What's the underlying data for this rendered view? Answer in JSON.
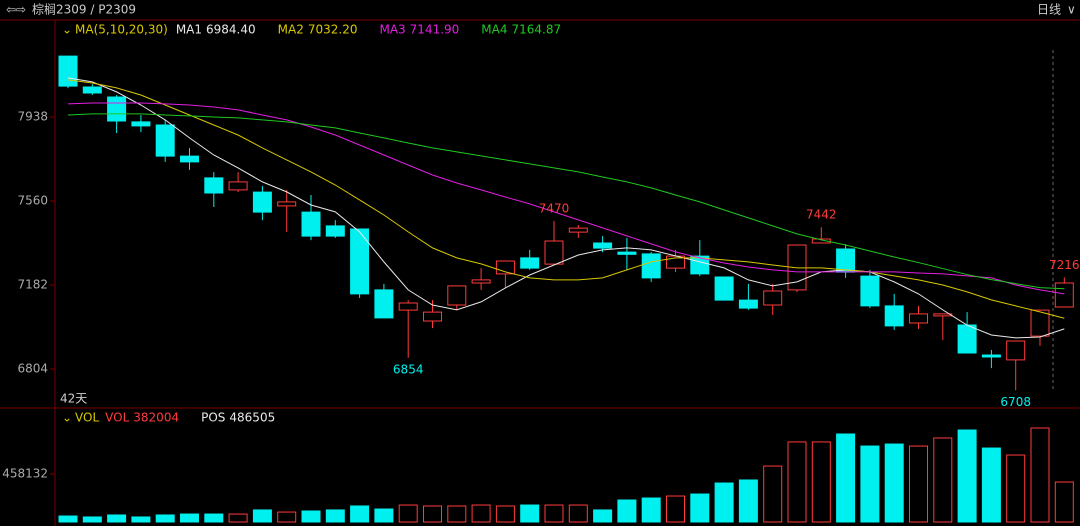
{
  "header": {
    "title": "棕榈2309 / P2309",
    "period": "日线"
  },
  "chart_data": [
    {
      "type": "candlestick",
      "span_label": "42天",
      "ma_title": "MA(5,10,20,30)",
      "up_color": "#ff3b3b",
      "down_color": "#00f0f0",
      "ylim": [
        6628.5,
        8374.5
      ],
      "yticks": [
        6804,
        7182,
        7560,
        7938
      ],
      "open": [
        8212,
        8073,
        8028,
        7916,
        7902,
        7762,
        7664,
        7610,
        7600,
        7538,
        7510,
        7448,
        7434,
        7160,
        7069,
        7020,
        7092,
        7191,
        7232,
        7304,
        7276,
        7420,
        7371,
        7330,
        7322,
        7258,
        7312,
        7218,
        7114,
        7092,
        7160,
        7371,
        7344,
        7222,
        7088,
        7011,
        7043,
        7002,
        6867,
        6845,
        6952,
        7083
      ],
      "high": [
        8212,
        8086,
        8037,
        7947,
        7924,
        7798,
        7690,
        7690,
        7628,
        7610,
        7587,
        7474,
        7434,
        7187,
        7114,
        7114,
        7178,
        7258,
        7290,
        7340,
        7470,
        7452,
        7402,
        7394,
        7330,
        7340,
        7384,
        7218,
        7187,
        7187,
        7362,
        7442,
        7366,
        7250,
        7142,
        7088,
        7052,
        7060,
        6890,
        6930,
        7069,
        7216
      ],
      "low": [
        8068,
        8037,
        7866,
        7870,
        7736,
        7700,
        7533,
        7600,
        7474,
        7420,
        7384,
        7394,
        7124,
        7034,
        6854,
        6988,
        7069,
        7160,
        7168,
        7250,
        7270,
        7394,
        7330,
        7250,
        7196,
        7240,
        7222,
        7114,
        7070,
        7047,
        7150,
        7370,
        7214,
        7078,
        6980,
        6984,
        6934,
        6876,
        6808,
        6708,
        6908,
        7083
      ],
      "close": [
        8077,
        8046,
        7920,
        7898,
        7762,
        7736,
        7596,
        7646,
        7510,
        7556,
        7402,
        7402,
        7142,
        7034,
        7101,
        7060,
        7178,
        7205,
        7290,
        7258,
        7380,
        7438,
        7348,
        7320,
        7214,
        7312,
        7232,
        7114,
        7078,
        7155,
        7362,
        7389,
        7240,
        7088,
        6998,
        7052,
        7052,
        6876,
        6858,
        6930,
        7069,
        7191
      ],
      "marked_extremes": [
        {
          "index": 14,
          "field": "low"
        },
        {
          "index": 20,
          "field": "high"
        },
        {
          "index": 31,
          "field": "high"
        },
        {
          "index": 39,
          "field": "low"
        },
        {
          "index": 41,
          "field": "high"
        }
      ],
      "series": [
        {
          "name": "MA1",
          "color": "#e8e8e8",
          "value_label": "6984.40",
          "values": [
            8114,
            8096,
            8051,
            7992,
            7925,
            7844,
            7767,
            7709,
            7646,
            7601,
            7542,
            7511,
            7421,
            7286,
            7160,
            7092,
            7070,
            7106,
            7169,
            7227,
            7272,
            7317,
            7340,
            7349,
            7340,
            7313,
            7286,
            7259,
            7205,
            7178,
            7196,
            7241,
            7250,
            7241,
            7196,
            7142,
            7070,
            7001,
            6957,
            6944,
            6948,
            6984.4
          ]
        },
        {
          "name": "MA2",
          "color": "#d8c800",
          "value_label": "7032.20",
          "values": [
            8105,
            8091,
            8069,
            8037,
            7992,
            7947,
            7902,
            7857,
            7799,
            7745,
            7691,
            7632,
            7565,
            7497,
            7421,
            7349,
            7304,
            7277,
            7241,
            7214,
            7205,
            7205,
            7214,
            7250,
            7286,
            7304,
            7304,
            7295,
            7286,
            7272,
            7259,
            7259,
            7250,
            7241,
            7223,
            7205,
            7182,
            7151,
            7115,
            7088,
            7061,
            7032.2
          ]
        },
        {
          "name": "MA3",
          "color": "#e020e0",
          "value_label": "7141.90",
          "values": [
            7997,
            8001,
            8001,
            8001,
            7997,
            7992,
            7983,
            7970,
            7947,
            7925,
            7893,
            7857,
            7812,
            7767,
            7722,
            7677,
            7641,
            7610,
            7578,
            7547,
            7511,
            7475,
            7439,
            7403,
            7367,
            7331,
            7304,
            7281,
            7263,
            7250,
            7241,
            7241,
            7241,
            7241,
            7241,
            7236,
            7232,
            7223,
            7214,
            7182,
            7160,
            7141.9
          ]
        },
        {
          "name": "MA4",
          "color": "#20c820",
          "value_label": "7164.87",
          "values": [
            7947,
            7952,
            7952,
            7952,
            7947,
            7943,
            7938,
            7934,
            7925,
            7916,
            7902,
            7889,
            7866,
            7844,
            7821,
            7799,
            7781,
            7763,
            7745,
            7727,
            7709,
            7691,
            7668,
            7646,
            7619,
            7587,
            7556,
            7520,
            7484,
            7448,
            7412,
            7385,
            7362,
            7335,
            7308,
            7283,
            7256,
            7229,
            7206,
            7188,
            7170,
            7164.87
          ]
        }
      ]
    },
    {
      "type": "bar",
      "title": "VOL",
      "name": "VOL",
      "ylim": [
        0,
        1069000
      ],
      "yticks": [
        458132
      ],
      "pos": {
        "name": "POS",
        "value": 486505
      },
      "values": [
        57000,
        48000,
        67000,
        48000,
        67000,
        76000,
        76000,
        76000,
        115000,
        95000,
        105000,
        115000,
        153000,
        124000,
        162000,
        153000,
        153000,
        162000,
        153000,
        162000,
        162000,
        162000,
        115000,
        210000,
        229000,
        248000,
        267000,
        372000,
        401000,
        534000,
        764000,
        764000,
        840000,
        725000,
        744000,
        725000,
        802000,
        878000,
        706000,
        639000,
        897000,
        382004
      ]
    }
  ]
}
